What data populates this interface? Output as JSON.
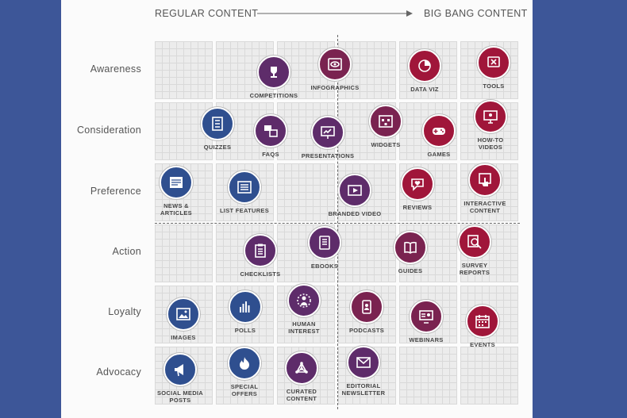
{
  "header": {
    "left": "REGULAR CONTENT",
    "right": "BIG BANG CONTENT"
  },
  "rows": [
    "Awareness",
    "Consideration",
    "Preference",
    "Action",
    "Loyalty",
    "Advocacy"
  ],
  "colors": {
    "blue": "#2f4f8f",
    "purple": "#5e2c6a",
    "plum": "#7a2350",
    "crimson": "#a0163a"
  },
  "items": [
    {
      "id": "competitions",
      "line1": "COMPETITIONS",
      "line2": "",
      "color": "#5e2c6a",
      "icon": "trophy-icon"
    },
    {
      "id": "infographics",
      "line1": "INFOGRAPHICS",
      "line2": "",
      "color": "#7a2350",
      "icon": "eye-icon"
    },
    {
      "id": "data-viz",
      "line1": "DATA VIZ",
      "line2": "",
      "color": "#a0163a",
      "icon": "pie-chart-icon"
    },
    {
      "id": "tools",
      "line1": "TOOLS",
      "line2": "",
      "color": "#a0163a",
      "icon": "tools-icon"
    },
    {
      "id": "quizzes",
      "line1": "QUIZZES",
      "line2": "",
      "color": "#2f4f8f",
      "icon": "checklist-icon"
    },
    {
      "id": "faqs",
      "line1": "FAQS",
      "line2": "",
      "color": "#5e2c6a",
      "icon": "qa-icon"
    },
    {
      "id": "presentations",
      "line1": "PRESENTATIONS",
      "line2": "",
      "color": "#5e2c6a",
      "icon": "presentation-icon"
    },
    {
      "id": "widgets",
      "line1": "WIDGETS",
      "line2": "",
      "color": "#7a2350",
      "icon": "widget-icon"
    },
    {
      "id": "games",
      "line1": "GAMES",
      "line2": "",
      "color": "#a0163a",
      "icon": "gamepad-icon"
    },
    {
      "id": "how-to-videos",
      "line1": "HOW-TO",
      "line2": "VIDEOS",
      "color": "#a0163a",
      "icon": "monitor-icon"
    },
    {
      "id": "news-articles",
      "line1": "NEWS &",
      "line2": "ARTICLES",
      "color": "#2f4f8f",
      "icon": "newspaper-icon"
    },
    {
      "id": "list-features",
      "line1": "LIST FEATURES",
      "line2": "",
      "color": "#2f4f8f",
      "icon": "list-icon"
    },
    {
      "id": "branded-video",
      "line1": "BRANDED VIDEO",
      "line2": "",
      "color": "#5e2c6a",
      "icon": "play-icon"
    },
    {
      "id": "reviews",
      "line1": "REVIEWS",
      "line2": "",
      "color": "#a0163a",
      "icon": "speech-heart-icon"
    },
    {
      "id": "interactive-content",
      "line1": "INTERACTIVE",
      "line2": "CONTENT",
      "color": "#a0163a",
      "icon": "touch-icon"
    },
    {
      "id": "checklists",
      "line1": "CHECKLISTS",
      "line2": "",
      "color": "#5e2c6a",
      "icon": "clipboard-icon"
    },
    {
      "id": "ebooks",
      "line1": "EBOOKS",
      "line2": "",
      "color": "#5e2c6a",
      "icon": "tablet-icon"
    },
    {
      "id": "guides",
      "line1": "GUIDES",
      "line2": "",
      "color": "#7a2350",
      "icon": "book-icon"
    },
    {
      "id": "survey-reports",
      "line1": "SURVEY",
      "line2": "REPORTS",
      "color": "#a0163a",
      "icon": "magnifier-icon"
    },
    {
      "id": "images",
      "line1": "IMAGES",
      "line2": "",
      "color": "#2f4f8f",
      "icon": "image-icon"
    },
    {
      "id": "polls",
      "line1": "POLLS",
      "line2": "",
      "color": "#2f4f8f",
      "icon": "bar-chart-icon"
    },
    {
      "id": "human-interest",
      "line1": "HUMAN",
      "line2": "INTEREST",
      "color": "#5e2c6a",
      "icon": "people-icon"
    },
    {
      "id": "podcasts",
      "line1": "PODCASTS",
      "line2": "",
      "color": "#7a2350",
      "icon": "phone-icon"
    },
    {
      "id": "webinars",
      "line1": "WEBINARS",
      "line2": "",
      "color": "#7a2350",
      "icon": "webinar-icon"
    },
    {
      "id": "events",
      "line1": "EVENTS",
      "line2": "",
      "color": "#a0163a",
      "icon": "calendar-icon"
    },
    {
      "id": "social-media-posts",
      "line1": "SOCIAL MEDIA",
      "line2": "POSTS",
      "color": "#2f4f8f",
      "icon": "megaphone-icon"
    },
    {
      "id": "special-offers",
      "line1": "SPECIAL",
      "line2": "OFFERS",
      "color": "#2f4f8f",
      "icon": "flame-icon"
    },
    {
      "id": "curated-content",
      "line1": "CURATED",
      "line2": "CONTENT",
      "color": "#5e2c6a",
      "icon": "network-icon"
    },
    {
      "id": "editorial-newsletter",
      "line1": "EDITORIAL",
      "line2": "NEWSLETTER",
      "color": "#5e2c6a",
      "icon": "envelope-icon"
    }
  ]
}
